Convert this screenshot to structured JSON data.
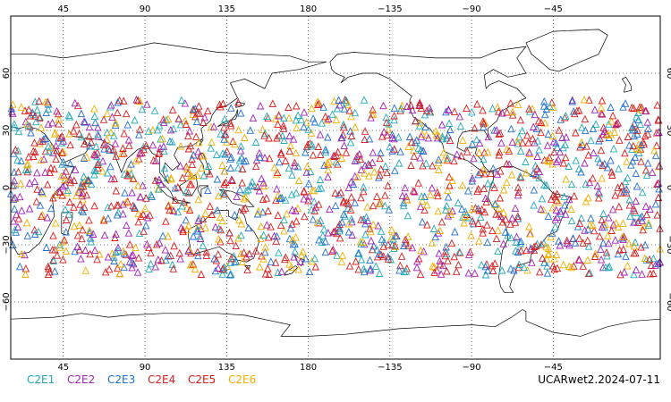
{
  "map": {
    "projection": "cylindrical-equidistant",
    "lon_range": [
      16,
      374
    ],
    "lat_range": [
      -90,
      90
    ],
    "lon_ticks": [
      {
        "value": 45,
        "label": "45"
      },
      {
        "value": 90,
        "label": "90"
      },
      {
        "value": 135,
        "label": "135"
      },
      {
        "value": 180,
        "label": "180"
      },
      {
        "value": 225,
        "label": "−135"
      },
      {
        "value": 270,
        "label": "−90"
      },
      {
        "value": 315,
        "label": "−45"
      }
    ],
    "lat_ticks": [
      {
        "value": 60,
        "label": "60"
      },
      {
        "value": 30,
        "label": "30"
      },
      {
        "value": 0,
        "label": "0"
      },
      {
        "value": -30,
        "label": "−30"
      },
      {
        "value": -60,
        "label": "−60"
      }
    ],
    "grid": true,
    "grid_style": "dotted",
    "marker": "open-triangle",
    "observation_lat_band": [
      -46,
      46
    ]
  },
  "legend": {
    "items": [
      {
        "label": "C2E1",
        "color": "#22aab8"
      },
      {
        "label": "C2E2",
        "color": "#a020b8"
      },
      {
        "label": "C2E3",
        "color": "#1f6fd0"
      },
      {
        "label": "C2E4",
        "color": "#d02020"
      },
      {
        "label": "C2E5",
        "color": "#e01818"
      },
      {
        "label": "C2E6",
        "color": "#f0b000"
      }
    ]
  },
  "footer": {
    "label": "UCARwet2.2024-07-11"
  }
}
